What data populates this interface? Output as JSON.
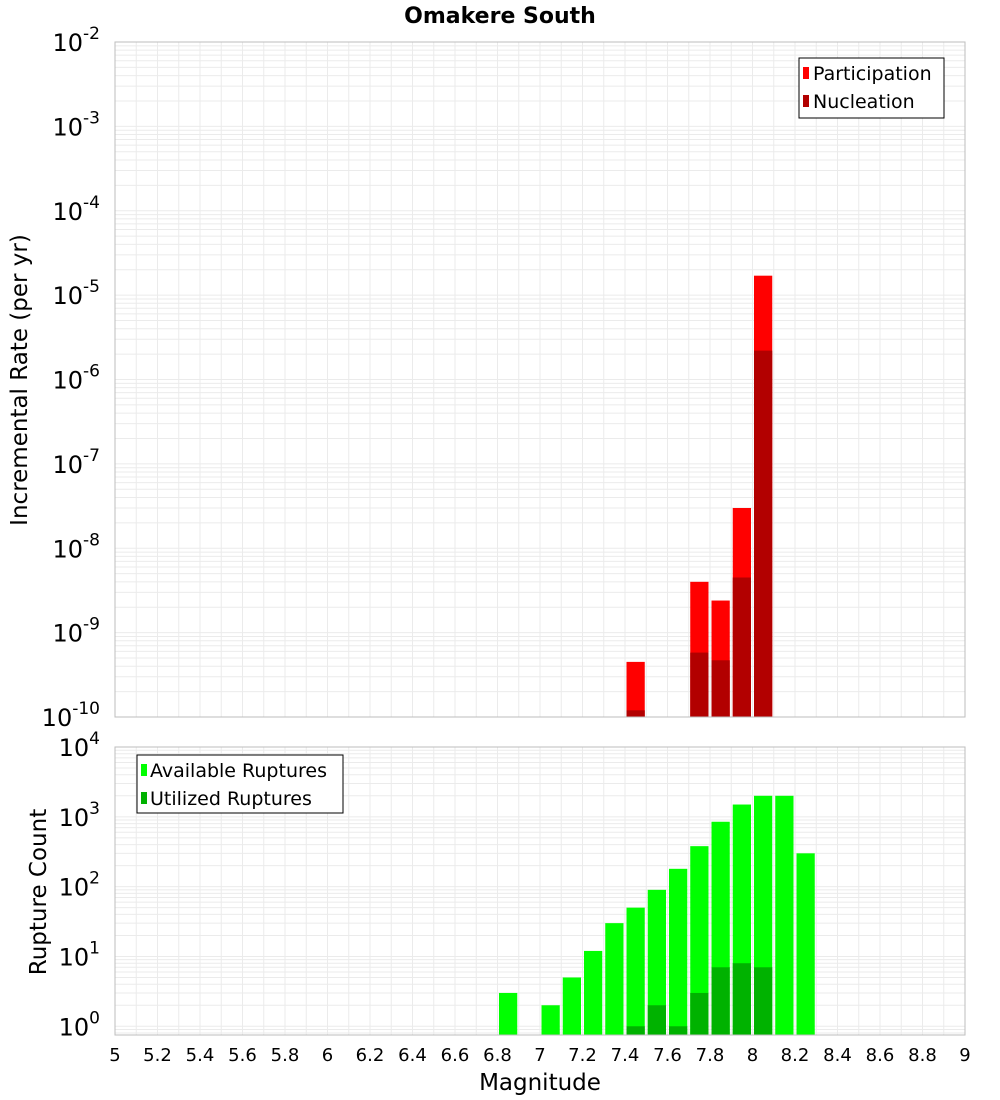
{
  "title": "Omakere South",
  "chart_data": [
    {
      "type": "bar",
      "log_y": true,
      "ylabel": "Incremental Rate (per yr)",
      "ylim": [
        1e-10,
        0.01
      ],
      "y_ticks": [
        {
          "base": "10",
          "exp": "-10"
        },
        {
          "base": "10",
          "exp": "-9"
        },
        {
          "base": "10",
          "exp": "-8"
        },
        {
          "base": "10",
          "exp": "-7"
        },
        {
          "base": "10",
          "exp": "-6"
        },
        {
          "base": "10",
          "exp": "-5"
        },
        {
          "base": "10",
          "exp": "-4"
        },
        {
          "base": "10",
          "exp": "-3"
        },
        {
          "base": "10",
          "exp": "-2"
        }
      ],
      "xlim": [
        5,
        9
      ],
      "bin_width": 0.1,
      "grid": true,
      "legend_position": "top-right",
      "series": [
        {
          "name": "Participation",
          "color": "#ff0000",
          "x": [
            7.45,
            7.75,
            7.85,
            7.95,
            8.05
          ],
          "values": [
            4.5e-10,
            4e-09,
            2.4e-09,
            3e-08,
            1.7e-05
          ]
        },
        {
          "name": "Nucleation",
          "color": "#b20000",
          "x": [
            7.45,
            7.75,
            7.85,
            7.95,
            8.05
          ],
          "values": [
            1.2e-10,
            5.8e-10,
            4.7e-10,
            4.5e-09,
            2.2e-06
          ]
        }
      ]
    },
    {
      "type": "bar",
      "log_y": true,
      "xlabel": "Magnitude",
      "ylabel": "Rupture Count",
      "ylim": [
        0.75,
        10000
      ],
      "y_ticks": [
        {
          "base": "10",
          "exp": "0",
          "value": 1
        },
        {
          "base": "10",
          "exp": "1",
          "value": 10
        },
        {
          "base": "10",
          "exp": "2",
          "value": 100
        },
        {
          "base": "10",
          "exp": "3",
          "value": 1000
        },
        {
          "base": "10",
          "exp": "4",
          "value": 10000
        }
      ],
      "xlim": [
        5,
        9
      ],
      "x_ticks": [
        "5",
        "5.2",
        "5.4",
        "5.6",
        "5.8",
        "6",
        "6.2",
        "6.4",
        "6.6",
        "6.8",
        "7",
        "7.2",
        "7.4",
        "7.6",
        "7.8",
        "8",
        "8.2",
        "8.4",
        "8.6",
        "8.8",
        "9"
      ],
      "bin_width": 0.1,
      "grid": true,
      "legend_position": "top-left",
      "series": [
        {
          "name": "Available Ruptures",
          "color": "#00ff00",
          "x": [
            6.85,
            7.05,
            7.15,
            7.25,
            7.35,
            7.45,
            7.55,
            7.65,
            7.75,
            7.85,
            7.95,
            8.05,
            8.15,
            8.25
          ],
          "values": [
            3,
            2,
            5,
            12,
            30,
            50,
            90,
            180,
            380,
            850,
            1500,
            2000,
            2000,
            300
          ]
        },
        {
          "name": "Utilized Ruptures",
          "color": "#00b200",
          "x": [
            7.45,
            7.55,
            7.65,
            7.75,
            7.85,
            7.95,
            8.05
          ],
          "values": [
            1,
            2,
            1,
            3,
            7,
            8,
            7
          ]
        }
      ]
    }
  ]
}
